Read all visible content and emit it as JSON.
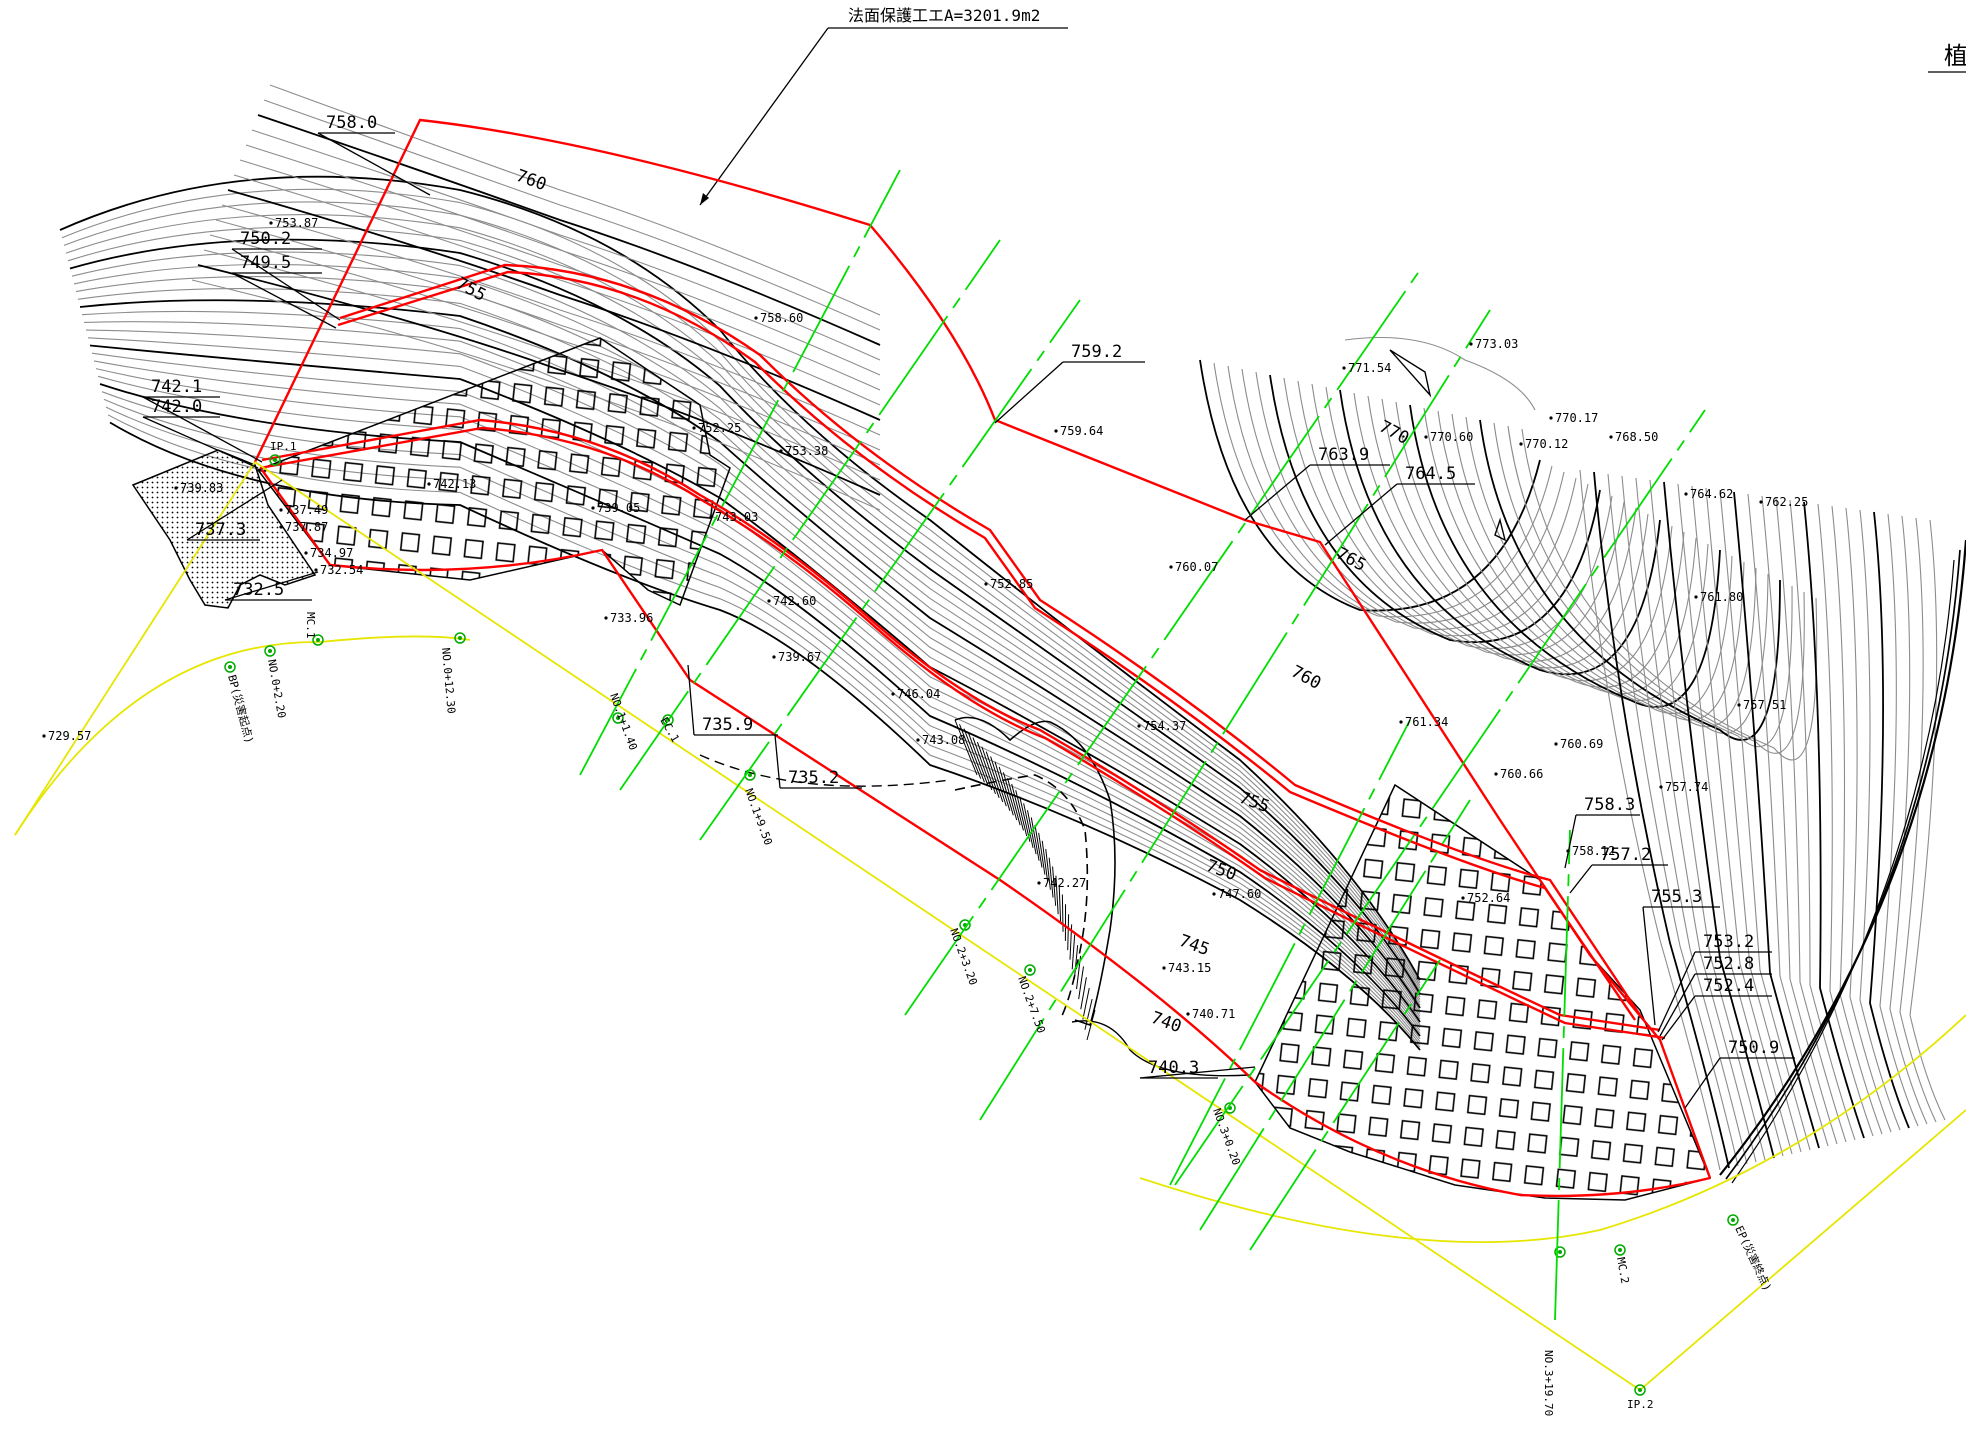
{
  "title": "法面保護工エA=3201.9m2",
  "corner_text": "植",
  "colors": {
    "contour_major": "#000000",
    "contour_minor": "#8c8c8c",
    "slope_boundary": "#ff0000",
    "section_line": "#00dd00",
    "road_alignment": "#e6e600",
    "hatch": "#000000"
  },
  "callout_labels": [
    "758.0",
    "750.2",
    "749.5",
    "742.1",
    "742.0",
    "737.3",
    "732.5",
    "759.2",
    "763.9",
    "764.5",
    "735.9",
    "735.2",
    "758.3",
    "757.2",
    "755.3",
    "753.2",
    "752.8",
    "752.4",
    "750.9",
    "740.3"
  ],
  "spot_elevations": [
    "753.87",
    "758.60",
    "752.25",
    "753.38",
    "742.13",
    "739.05",
    "743.03",
    "737.49",
    "737.87",
    "734.97",
    "732.54",
    "733.96",
    "739.83",
    "742.60",
    "739.67",
    "746.04",
    "743.08",
    "752.85",
    "759.64",
    "760.07",
    "754.37",
    "742.27",
    "747.60",
    "743.15",
    "740.71",
    "752.64",
    "758.12",
    "761.34",
    "760.69",
    "760.66",
    "771.54",
    "773.03",
    "770.60",
    "770.12",
    "770.17",
    "768.50",
    "764.62",
    "762.25",
    "761.80",
    "757.51",
    "757.74",
    "729.57"
  ],
  "contour_labels": [
    "760",
    "755",
    "770",
    "765",
    "760",
    "755",
    "750",
    "745",
    "740"
  ],
  "stations": [
    "IP.1",
    "MC.1",
    "BP(災害起点)",
    "NO.0+2.20",
    "NO.0+12.30",
    "NO.1+1.40",
    "EC.1",
    "NO.1+9.50",
    "NO.2+3.20",
    "NO.2+7.50",
    "NO.3+0.20",
    "MC.2",
    "EP(災害終点)",
    "NO.3+19.70",
    "IP.2"
  ]
}
